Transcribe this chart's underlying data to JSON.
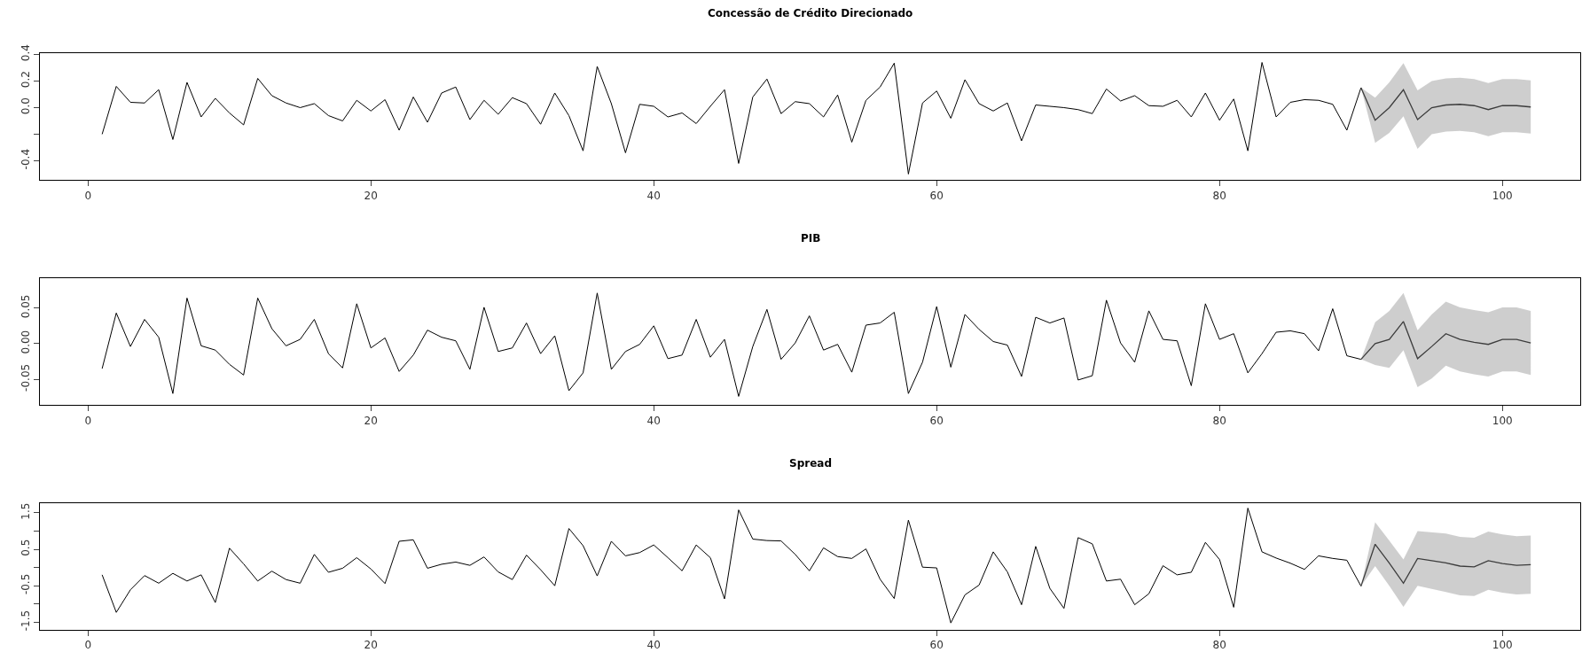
{
  "chart_data": [
    {
      "type": "line",
      "title": "Concessão de Crédito Direcionado",
      "xlim": [
        -3.4,
        105.5
      ],
      "xticks": [
        0,
        20,
        40,
        60,
        80,
        100
      ],
      "ylim": [
        -0.545,
        0.41
      ],
      "yticks": [
        {
          "value": -0.4,
          "label": "-0.4"
        },
        {
          "value": -0.2,
          "label": null
        },
        {
          "value": 0.0,
          "label": "0.0"
        },
        {
          "value": 0.2,
          "label": "0.2"
        },
        {
          "value": 0.4,
          "label": "0.4"
        }
      ],
      "series": [
        {
          "color": "#000000",
          "x": [
            1,
            2,
            3,
            4,
            5,
            6,
            7,
            8,
            9,
            10,
            11,
            12,
            13,
            14,
            15,
            16,
            17,
            18,
            19,
            20,
            21,
            22,
            23,
            24,
            25,
            26,
            27,
            28,
            29,
            30,
            31,
            32,
            33,
            34,
            35,
            36,
            37,
            38,
            39,
            40,
            41,
            42,
            43,
            44,
            45,
            46,
            47,
            48,
            49,
            50,
            51,
            52,
            53,
            54,
            55,
            56,
            57,
            58,
            59,
            60,
            61,
            62,
            63,
            64,
            65,
            66,
            67,
            68,
            69,
            70,
            71,
            72,
            73,
            74,
            75,
            76,
            77,
            78,
            79,
            80,
            81,
            82,
            83,
            84,
            85,
            86,
            87,
            88,
            89,
            90
          ],
          "values": [
            -0.2,
            0.16,
            0.04,
            0.035,
            0.135,
            -0.24,
            0.19,
            -0.07,
            0.07,
            -0.04,
            -0.13,
            0.22,
            0.09,
            0.035,
            0.0,
            0.03,
            -0.06,
            -0.1,
            0.055,
            -0.025,
            0.06,
            -0.17,
            0.08,
            -0.11,
            0.11,
            0.155,
            -0.09,
            0.055,
            -0.05,
            0.075,
            0.03,
            -0.125,
            0.11,
            -0.06,
            -0.325,
            0.31,
            0.03,
            -0.34,
            0.025,
            0.01,
            -0.07,
            -0.04,
            -0.12,
            0.01,
            0.135,
            -0.42,
            0.08,
            0.215,
            -0.045,
            0.045,
            0.03,
            -0.07,
            0.095,
            -0.26,
            0.055,
            0.155,
            0.335,
            -0.5,
            0.035,
            0.125,
            -0.08,
            0.21,
            0.03,
            -0.025,
            0.035,
            -0.25,
            0.02,
            0.01,
            0.0,
            -0.015,
            -0.045,
            0.14,
            0.05,
            0.09,
            0.015,
            0.01,
            0.055,
            -0.07,
            0.11,
            -0.095,
            0.065,
            -0.325,
            0.34,
            -0.07,
            0.04,
            0.06,
            0.055,
            0.025,
            -0.17,
            0.15
          ]
        },
        {
          "color": "#3c3c3c",
          "x": [
            90,
            91,
            92,
            93,
            94,
            95,
            96,
            97,
            98,
            99,
            100,
            101,
            102
          ],
          "values": [
            0.15,
            -0.095,
            0.0,
            0.135,
            -0.09,
            0.0,
            0.02,
            0.025,
            0.015,
            -0.015,
            0.015,
            0.015,
            0.005
          ],
          "lower": [
            0.15,
            -0.265,
            -0.19,
            -0.065,
            -0.31,
            -0.2,
            -0.18,
            -0.175,
            -0.185,
            -0.215,
            -0.185,
            -0.185,
            -0.195
          ],
          "upper": [
            0.15,
            0.075,
            0.19,
            0.335,
            0.13,
            0.2,
            0.22,
            0.225,
            0.215,
            0.185,
            0.215,
            0.215,
            0.205
          ]
        }
      ]
    },
    {
      "type": "line",
      "title": "PIB",
      "xlim": [
        -3.4,
        105.5
      ],
      "xticks": [
        0,
        20,
        40,
        60,
        80,
        100
      ],
      "ylim": [
        -0.086,
        0.092
      ],
      "yticks": [
        {
          "value": -0.05,
          "label": "-0.05"
        },
        {
          "value": 0.0,
          "label": "0.00"
        },
        {
          "value": 0.05,
          "label": "0.05"
        }
      ],
      "series": [
        {
          "color": "#000000",
          "x": [
            1,
            2,
            3,
            4,
            5,
            6,
            7,
            8,
            9,
            10,
            11,
            12,
            13,
            14,
            15,
            16,
            17,
            18,
            19,
            20,
            21,
            22,
            23,
            24,
            25,
            26,
            27,
            28,
            29,
            30,
            31,
            32,
            33,
            34,
            35,
            36,
            37,
            38,
            39,
            40,
            41,
            42,
            43,
            44,
            45,
            46,
            47,
            48,
            49,
            50,
            51,
            52,
            53,
            54,
            55,
            56,
            57,
            58,
            59,
            60,
            61,
            62,
            63,
            64,
            65,
            66,
            67,
            68,
            69,
            70,
            71,
            72,
            73,
            74,
            75,
            76,
            77,
            78,
            79,
            80,
            81,
            82,
            83,
            84,
            85,
            86,
            87,
            88,
            89,
            90
          ],
          "values": [
            -0.035,
            0.043,
            -0.004,
            0.034,
            0.009,
            -0.07,
            0.064,
            -0.003,
            -0.009,
            -0.029,
            -0.044,
            0.064,
            0.021,
            -0.003,
            0.006,
            0.034,
            -0.014,
            -0.034,
            0.056,
            -0.006,
            0.008,
            -0.039,
            -0.016,
            0.019,
            0.009,
            0.004,
            -0.036,
            0.051,
            -0.011,
            -0.006,
            0.029,
            -0.014,
            0.011,
            -0.066,
            -0.041,
            0.071,
            -0.036,
            -0.011,
            -0.001,
            0.025,
            -0.021,
            -0.016,
            0.034,
            -0.019,
            0.006,
            -0.074,
            -0.004,
            0.048,
            -0.022,
            0.001,
            0.039,
            -0.009,
            -0.001,
            -0.04,
            0.026,
            0.029,
            0.044,
            -0.07,
            -0.026,
            0.052,
            -0.033,
            0.041,
            0.02,
            0.003,
            -0.002,
            -0.046,
            0.037,
            0.029,
            0.036,
            -0.051,
            -0.045,
            0.061,
            0.001,
            -0.026,
            0.046,
            0.006,
            0.004,
            -0.059,
            0.056,
            0.006,
            0.014,
            -0.041,
            -0.014,
            0.016,
            0.018,
            0.014,
            -0.01,
            0.049,
            -0.017,
            -0.022
          ]
        },
        {
          "color": "#3c3c3c",
          "x": [
            90,
            91,
            92,
            93,
            94,
            95,
            96,
            97,
            98,
            99,
            100,
            101,
            102
          ],
          "values": [
            -0.022,
            0.0,
            0.006,
            0.031,
            -0.021,
            -0.004,
            0.014,
            0.006,
            0.002,
            -0.001,
            0.006,
            0.006,
            0.001
          ],
          "lower": [
            -0.022,
            -0.03,
            -0.034,
            -0.009,
            -0.061,
            -0.049,
            -0.031,
            -0.039,
            -0.043,
            -0.046,
            -0.039,
            -0.039,
            -0.044
          ],
          "upper": [
            -0.022,
            0.03,
            0.046,
            0.071,
            0.019,
            0.041,
            0.059,
            0.051,
            0.047,
            0.044,
            0.051,
            0.051,
            0.046
          ]
        }
      ]
    },
    {
      "type": "line",
      "title": "Spread",
      "xlim": [
        -3.4,
        105.5
      ],
      "xticks": [
        0,
        20,
        40,
        60,
        80,
        100
      ],
      "ylim": [
        -1.71,
        1.77
      ],
      "yticks": [
        {
          "value": -1.5,
          "label": "-1.5"
        },
        {
          "value": -1.0,
          "label": null
        },
        {
          "value": -0.5,
          "label": "-0.5"
        },
        {
          "value": 0.0,
          "label": null
        },
        {
          "value": 0.5,
          "label": "0.5"
        },
        {
          "value": 1.0,
          "label": null
        },
        {
          "value": 1.5,
          "label": "1.5"
        }
      ],
      "series": [
        {
          "color": "#000000",
          "x": [
            1,
            2,
            3,
            4,
            5,
            6,
            7,
            8,
            9,
            10,
            11,
            12,
            13,
            14,
            15,
            16,
            17,
            18,
            19,
            20,
            21,
            22,
            23,
            24,
            25,
            26,
            27,
            28,
            29,
            30,
            31,
            32,
            33,
            34,
            35,
            36,
            37,
            38,
            39,
            40,
            41,
            42,
            43,
            44,
            45,
            46,
            47,
            48,
            49,
            50,
            51,
            52,
            53,
            54,
            55,
            56,
            57,
            58,
            59,
            60,
            61,
            62,
            63,
            64,
            65,
            66,
            67,
            68,
            69,
            70,
            71,
            72,
            73,
            74,
            75,
            76,
            77,
            78,
            79,
            80,
            81,
            82,
            83,
            84,
            85,
            86,
            87,
            88,
            89,
            90
          ],
          "values": [
            -0.2,
            -1.23,
            -0.61,
            -0.22,
            -0.43,
            -0.16,
            -0.37,
            -0.2,
            -0.96,
            0.53,
            0.1,
            -0.37,
            -0.1,
            -0.33,
            -0.43,
            0.36,
            -0.13,
            -0.02,
            0.27,
            -0.04,
            -0.44,
            0.72,
            0.76,
            -0.02,
            0.09,
            0.15,
            0.06,
            0.29,
            -0.12,
            -0.33,
            0.34,
            -0.06,
            -0.5,
            1.07,
            0.6,
            -0.23,
            0.72,
            0.32,
            0.41,
            0.62,
            0.27,
            -0.09,
            0.62,
            0.27,
            -0.86,
            1.58,
            0.78,
            0.74,
            0.73,
            0.36,
            -0.09,
            0.54,
            0.3,
            0.25,
            0.51,
            -0.32,
            -0.85,
            1.3,
            0.01,
            -0.01,
            -1.52,
            -0.75,
            -0.48,
            0.43,
            -0.12,
            -1.02,
            0.58,
            -0.57,
            -1.12,
            0.82,
            0.65,
            -0.37,
            -0.32,
            -1.02,
            -0.72,
            0.05,
            -0.2,
            -0.13,
            0.69,
            0.22,
            -1.09,
            1.63,
            0.43,
            0.26,
            0.12,
            -0.05,
            0.32,
            0.25,
            0.2,
            -0.51
          ]
        },
        {
          "color": "#3c3c3c",
          "x": [
            90,
            91,
            92,
            93,
            94,
            95,
            96,
            97,
            98,
            99,
            100,
            101,
            102
          ],
          "values": [
            -0.51,
            0.64,
            0.12,
            -0.43,
            0.25,
            0.19,
            0.13,
            0.04,
            0.02,
            0.19,
            0.11,
            0.06,
            0.08
          ],
          "lower": [
            -0.51,
            0.04,
            -0.5,
            -1.08,
            -0.5,
            -0.59,
            -0.67,
            -0.76,
            -0.78,
            -0.61,
            -0.69,
            -0.74,
            -0.72
          ],
          "upper": [
            -0.51,
            1.24,
            0.74,
            0.22,
            1.0,
            0.97,
            0.93,
            0.84,
            0.82,
            0.99,
            0.91,
            0.86,
            0.88
          ]
        }
      ]
    }
  ]
}
